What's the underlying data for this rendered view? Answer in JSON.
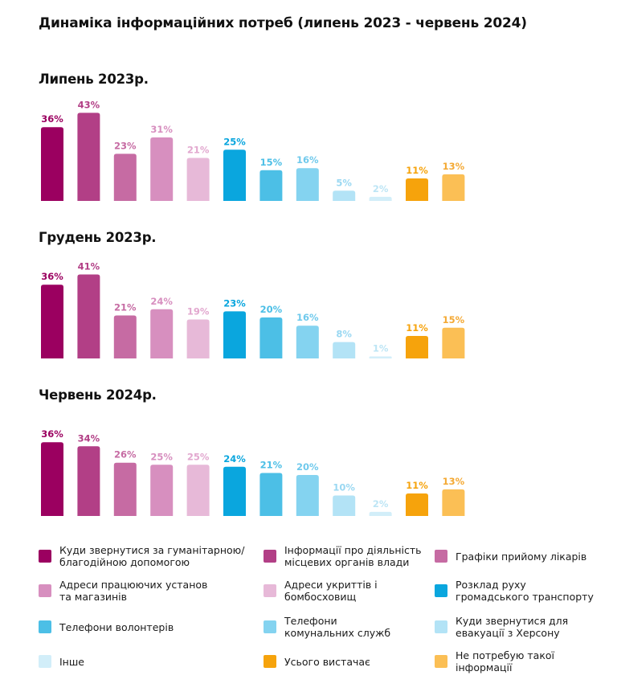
{
  "title": "Динаміка інформаційних потреб (липень 2023 - червень 2024)",
  "categories": [
    "Куди звернутися за гуманітарною/\nблагодійною допомогою",
    "Інформації про діяльність\nмісцевих органів влади",
    "Графіки прийому лікарів",
    "Адреси працюючих установ\nта магазинів",
    "Адреси укриттів і\nбомбосховищ",
    "Розклад руху\nгромадського транспорту",
    "Телефони волонтерів",
    "Телефони\nкомунальних служб",
    "Куди звернутися для\nевакуації з Херсону",
    "Інше",
    "Усього вистачає",
    "Не потребую такої\nінформації"
  ],
  "colors": [
    "#9b0060",
    "#b23f86",
    "#c66ba3",
    "#d78fbf",
    "#e7b9d8",
    "#0aa6de",
    "#4cbfe6",
    "#84d3f0",
    "#b3e3f6",
    "#d2eef9",
    "#f6a30c",
    "#fbbf55"
  ],
  "label_colors": [
    "#9b0060",
    "#b23f86",
    "#c66ba3",
    "#d78fbf",
    "#e2a8cf",
    "#0aa6de",
    "#4cbfe6",
    "#6fc9ec",
    "#9ad8f2",
    "#bde5f5",
    "#f6a30c",
    "#f4a934"
  ],
  "chart_data": [
    {
      "type": "bar",
      "title": "Липень 2023р.",
      "categories": [
        "Куди звернутися за гуманітарною/благодійною допомогою",
        "Інформації про діяльність місцевих органів влади",
        "Графіки прийому лікарів",
        "Адреси працюючих установ та магазинів",
        "Адреси укриттів і бомбосховищ",
        "Розклад руху громадського транспорту",
        "Телефони волонтерів",
        "Телефони комунальних служб",
        "Куди звернутися для евакуації з Херсону",
        "Інше",
        "Усього вистачає",
        "Не потребую такої інформації"
      ],
      "values": [
        36,
        43,
        23,
        31,
        21,
        25,
        15,
        16,
        5,
        2,
        11,
        13
      ],
      "value_labels": [
        "36%",
        "43%",
        "23%",
        "31%",
        "21%",
        "25%",
        "15%",
        "16%",
        "5%",
        "2%",
        "11%",
        "13%"
      ],
      "ylim": [
        0,
        43
      ],
      "grid": false,
      "legend": "bottom"
    },
    {
      "type": "bar",
      "title": "Грудень 2023р.",
      "categories": [
        "Куди звернутися за гуманітарною/благодійною допомогою",
        "Інформації про діяльність місцевих органів влади",
        "Графіки прийому лікарів",
        "Адреси працюючих установ та магазинів",
        "Адреси укриттів і бомбосховищ",
        "Розклад руху громадського транспорту",
        "Телефони волонтерів",
        "Телефони комунальних служб",
        "Куди звернутися для евакуації з Херсону",
        "Інше",
        "Усього вистачає",
        "Не потребую такої інформації"
      ],
      "values": [
        36,
        41,
        21,
        24,
        19,
        23,
        20,
        16,
        8,
        1,
        11,
        15
      ],
      "value_labels": [
        "36%",
        "41%",
        "21%",
        "24%",
        "19%",
        "23%",
        "20%",
        "16%",
        "8%",
        "1%",
        "11%",
        "15%"
      ],
      "ylim": [
        0,
        43
      ],
      "grid": false,
      "legend": "bottom"
    },
    {
      "type": "bar",
      "title": "Червень 2024р.",
      "categories": [
        "Куди звернутися за гуманітарною/благодійною допомогою",
        "Інформації про діяльність місцевих органів влади",
        "Графіки прийому лікарів",
        "Адреси працюючих установ та магазинів",
        "Адреси укриттів і бомбосховищ",
        "Розклад руху громадського транспорту",
        "Телефони волонтерів",
        "Телефони комунальних служб",
        "Куди звернутися для евакуації з Херсону",
        "Інше",
        "Усього вистачає",
        "Не потребую такої інформації"
      ],
      "values": [
        36,
        34,
        26,
        25,
        25,
        24,
        21,
        20,
        10,
        2,
        11,
        13
      ],
      "value_labels": [
        "36%",
        "34%",
        "26%",
        "25%",
        "25%",
        "24%",
        "21%",
        "20%",
        "10%",
        "2%",
        "11%",
        "13%"
      ],
      "ylim": [
        0,
        43
      ],
      "grid": false,
      "legend": "bottom"
    }
  ]
}
